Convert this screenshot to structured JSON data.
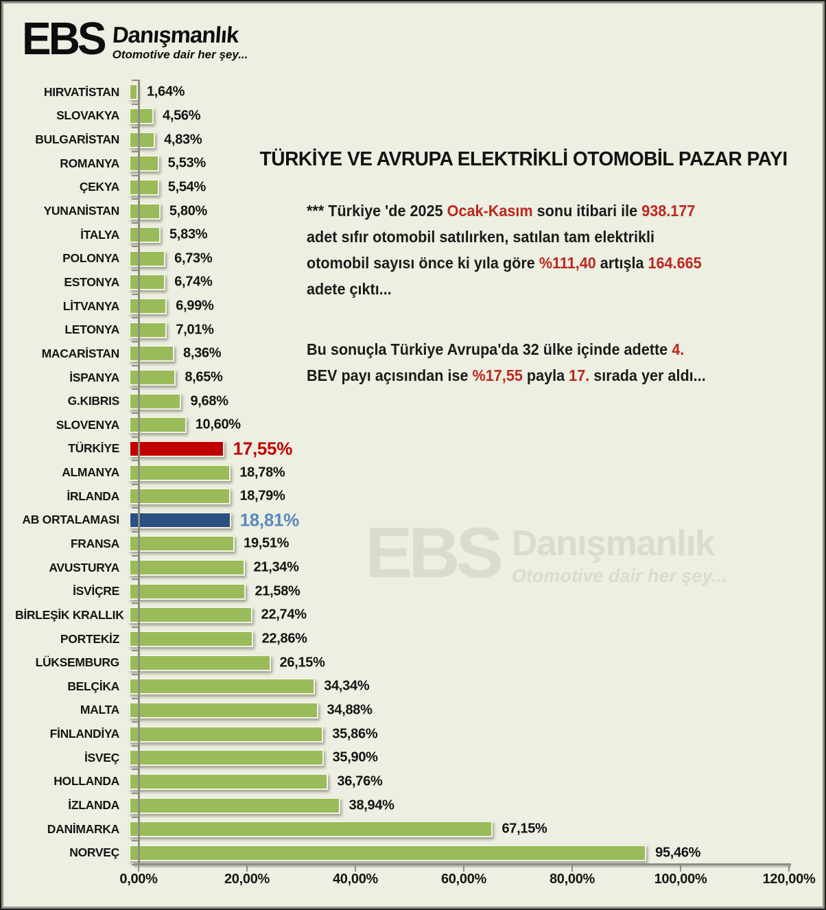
{
  "logo": {
    "name_big": "EBS",
    "name_small": "Danışmanlık",
    "tagline": "Otomotive dair her şey..."
  },
  "watermark": {
    "name_big": "EBS",
    "name_small": "Danışmanlık",
    "tagline": "Otomotive dair her şey..."
  },
  "title": "TÜRKİYE VE AVRUPA ELEKTRİKLİ OTOMOBİL PAZAR PAYI",
  "annotations": {
    "para1_lines": [
      [
        {
          "t": "*** Türkiye 'de 2025 "
        },
        {
          "t": "Ocak-Kasım",
          "red": true
        },
        {
          "t": " sonu itibari ile "
        },
        {
          "t": "938.177",
          "red": true
        }
      ],
      [
        {
          "t": "adet sıfır otomobil satılırken, satılan tam elektrikli"
        }
      ],
      [
        {
          "t": "otomobil sayısı önce ki yıla göre "
        },
        {
          "t": "%111,40",
          "red": true
        },
        {
          "t": " artışla "
        },
        {
          "t": "164.665",
          "red": true
        }
      ],
      [
        {
          "t": "adete çıktı..."
        }
      ]
    ],
    "para2_lines": [
      [
        {
          "t": "Bu sonuçla Türkiye Avrupa'da 32 ülke içinde adette "
        },
        {
          "t": "4.",
          "red": true
        }
      ],
      [
        {
          "t": "BEV payı açısından ise "
        },
        {
          "t": "%17,55",
          "red": true
        },
        {
          "t": " payla "
        },
        {
          "t": "17.",
          "red": true
        },
        {
          "t": " sırada yer aldı..."
        }
      ]
    ]
  },
  "palette": {
    "green": "#9ABB59",
    "red": "#C00000",
    "blue": "#2B5082",
    "red_text": "#C00000",
    "blue_text": "#5B87BE",
    "bg": "#ECEFE1",
    "axis": "#8C8E86"
  },
  "chart_data": {
    "type": "bar",
    "orientation": "horizontal",
    "title": "TÜRKİYE VE AVRUPA ELEKTRİKLİ OTOMOBİL PAZAR PAYI",
    "xlim": [
      0,
      120
    ],
    "x_tick_labels": [
      "0,00%",
      "20,00%",
      "40,00%",
      "60,00%",
      "80,00%",
      "100,00%",
      "120,00%"
    ],
    "grid": false,
    "legend": false,
    "rows": [
      {
        "category": "HIRVATİSTAN",
        "value": 1.64,
        "label": "1,64%",
        "color": "green"
      },
      {
        "category": "SLOVAKYA",
        "value": 4.56,
        "label": "4,56%",
        "color": "green"
      },
      {
        "category": "BULGARİSTAN",
        "value": 4.83,
        "label": "4,83%",
        "color": "green"
      },
      {
        "category": "ROMANYA",
        "value": 5.53,
        "label": "5,53%",
        "color": "green"
      },
      {
        "category": "ÇEKYA",
        "value": 5.54,
        "label": "5,54%",
        "color": "green"
      },
      {
        "category": "YUNANİSTAN",
        "value": 5.8,
        "label": "5,80%",
        "color": "green"
      },
      {
        "category": "İTALYA",
        "value": 5.83,
        "label": "5,83%",
        "color": "green"
      },
      {
        "category": "POLONYA",
        "value": 6.73,
        "label": "6,73%",
        "color": "green"
      },
      {
        "category": "ESTONYA",
        "value": 6.74,
        "label": "6,74%",
        "color": "green"
      },
      {
        "category": "LİTVANYA",
        "value": 6.99,
        "label": "6,99%",
        "color": "green"
      },
      {
        "category": "LETONYA",
        "value": 7.01,
        "label": "7,01%",
        "color": "green"
      },
      {
        "category": "MACARİSTAN",
        "value": 8.36,
        "label": "8,36%",
        "color": "green"
      },
      {
        "category": "İSPANYA",
        "value": 8.65,
        "label": "8,65%",
        "color": "green"
      },
      {
        "category": "G.KIBRIS",
        "value": 9.68,
        "label": "9,68%",
        "color": "green"
      },
      {
        "category": "SLOVENYA",
        "value": 10.6,
        "label": "10,60%",
        "color": "green"
      },
      {
        "category": "TÜRKİYE",
        "value": 17.55,
        "label": "17,55%",
        "color": "red"
      },
      {
        "category": "ALMANYA",
        "value": 18.78,
        "label": "18,78%",
        "color": "green"
      },
      {
        "category": "İRLANDA",
        "value": 18.79,
        "label": "18,79%",
        "color": "green"
      },
      {
        "category": "AB ORTALAMASI",
        "value": 18.81,
        "label": "18,81%",
        "color": "blue"
      },
      {
        "category": "FRANSA",
        "value": 19.51,
        "label": "19,51%",
        "color": "green"
      },
      {
        "category": "AVUSTURYA",
        "value": 21.34,
        "label": "21,34%",
        "color": "green"
      },
      {
        "category": "İSVİÇRE",
        "value": 21.58,
        "label": "21,58%",
        "color": "green"
      },
      {
        "category": "BİRLEŞİK KRALLIK",
        "value": 22.74,
        "label": "22,74%",
        "color": "green"
      },
      {
        "category": "PORTEKİZ",
        "value": 22.86,
        "label": "22,86%",
        "color": "green"
      },
      {
        "category": "LÜKSEMBURG",
        "value": 26.15,
        "label": "26,15%",
        "color": "green"
      },
      {
        "category": "BELÇİKA",
        "value": 34.34,
        "label": "34,34%",
        "color": "green"
      },
      {
        "category": "MALTA",
        "value": 34.88,
        "label": "34,88%",
        "color": "green"
      },
      {
        "category": "FİNLANDİYA",
        "value": 35.86,
        "label": "35,86%",
        "color": "green"
      },
      {
        "category": "İSVEÇ",
        "value": 35.9,
        "label": "35,90%",
        "color": "green"
      },
      {
        "category": "HOLLANDA",
        "value": 36.76,
        "label": "36,76%",
        "color": "green"
      },
      {
        "category": "İZLANDA",
        "value": 38.94,
        "label": "38,94%",
        "color": "green"
      },
      {
        "category": "DANİMARKA",
        "value": 67.15,
        "label": "67,15%",
        "color": "green"
      },
      {
        "category": "NORVEÇ",
        "value": 95.46,
        "label": "95,46%",
        "color": "green"
      }
    ]
  }
}
